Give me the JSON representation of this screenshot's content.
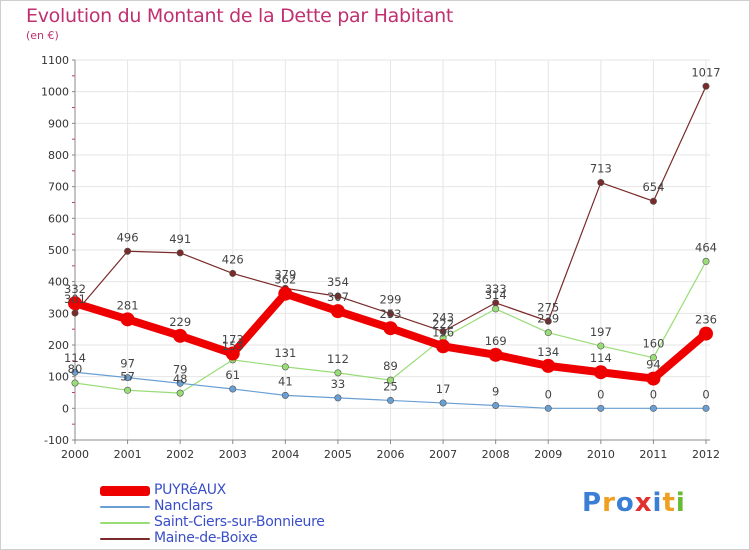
{
  "header": {
    "title": "Evolution du Montant de la Dette par Habitant",
    "subtitle": "(en €)"
  },
  "colors": {
    "axis": "#888888",
    "grid": "#e6e6e6",
    "tick_label": "#333333",
    "value_label": "#444444",
    "title": "#c03070"
  },
  "chart_data": {
    "type": "line",
    "title": "Evolution du Montant de la Dette par Habitant",
    "subtitle": "(en €)",
    "xlabel": "",
    "ylabel": "",
    "x": [
      "2000",
      "2001",
      "2002",
      "2003",
      "2004",
      "2005",
      "2006",
      "2007",
      "2008",
      "2009",
      "2010",
      "2011",
      "2012"
    ],
    "ylim": [
      -100,
      1100
    ],
    "yticks": [
      -100,
      0,
      100,
      200,
      300,
      400,
      500,
      600,
      700,
      800,
      900,
      1000,
      1100
    ],
    "grid": true,
    "legend_position": "bottom-left",
    "series": [
      {
        "name": "PUYRéAUX",
        "color": "#ee0000",
        "values": [
          332,
          281,
          229,
          173,
          362,
          307,
          253,
          196,
          169,
          134,
          114,
          94,
          236
        ]
      },
      {
        "name": "Nanclars",
        "color": "#6a9fd4",
        "values": [
          114,
          97,
          79,
          61,
          41,
          33,
          25,
          17,
          9,
          0,
          0,
          0,
          0
        ]
      },
      {
        "name": "Saint-Ciers-sur-Bonnieure",
        "color": "#99dd77",
        "values": [
          80,
          57,
          48,
          153,
          131,
          112,
          89,
          222,
          314,
          239,
          197,
          160,
          464
        ]
      },
      {
        "name": "Maine-de-Boixe",
        "color": "#7a2a2a",
        "values": [
          301,
          496,
          491,
          426,
          379,
          354,
          299,
          243,
          333,
          275,
          713,
          654,
          1017
        ]
      }
    ]
  },
  "logo": {
    "text": "Proxiti",
    "letter_colors": [
      "#3a7fd5",
      "#f0a020",
      "#3a7fd5",
      "#e03030",
      "#3a7fd5",
      "#f0a020",
      "#66bb33"
    ]
  }
}
